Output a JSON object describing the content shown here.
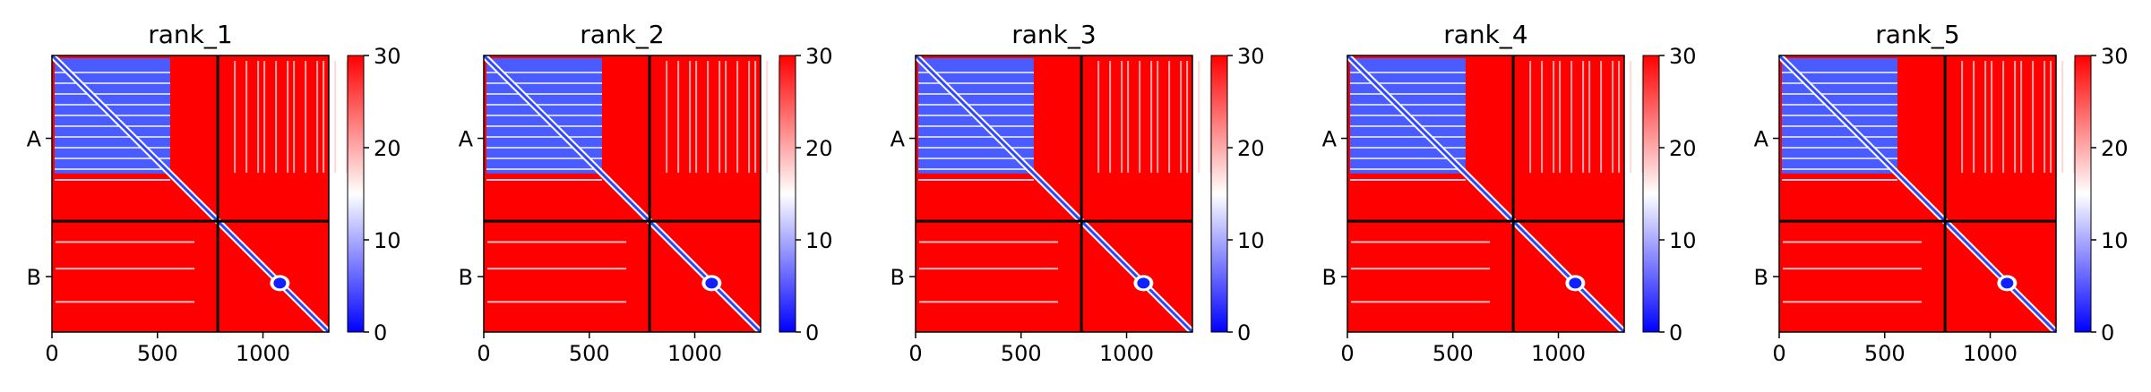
{
  "chart_data": {
    "type": "heatmap",
    "colormap": {
      "low": "#0000ff",
      "mid": "#ffffff",
      "high": "#ff0000",
      "range": [
        0,
        30
      ]
    },
    "colorbar_ticks": [
      "0",
      "10",
      "20",
      "30"
    ],
    "x_ticks": [
      {
        "value": 0,
        "label": "0"
      },
      {
        "value": 500,
        "label": "500"
      },
      {
        "value": 1000,
        "label": "1000"
      }
    ],
    "y_ticks": [
      {
        "label": "A"
      },
      {
        "label": "B"
      }
    ],
    "x_range": [
      0,
      1312
    ],
    "chain_boundary": 786,
    "panels": [
      {
        "title": "rank_1"
      },
      {
        "title": "rank_2"
      },
      {
        "title": "rank_3"
      },
      {
        "title": "rank_4"
      },
      {
        "title": "rank_5"
      }
    ]
  }
}
